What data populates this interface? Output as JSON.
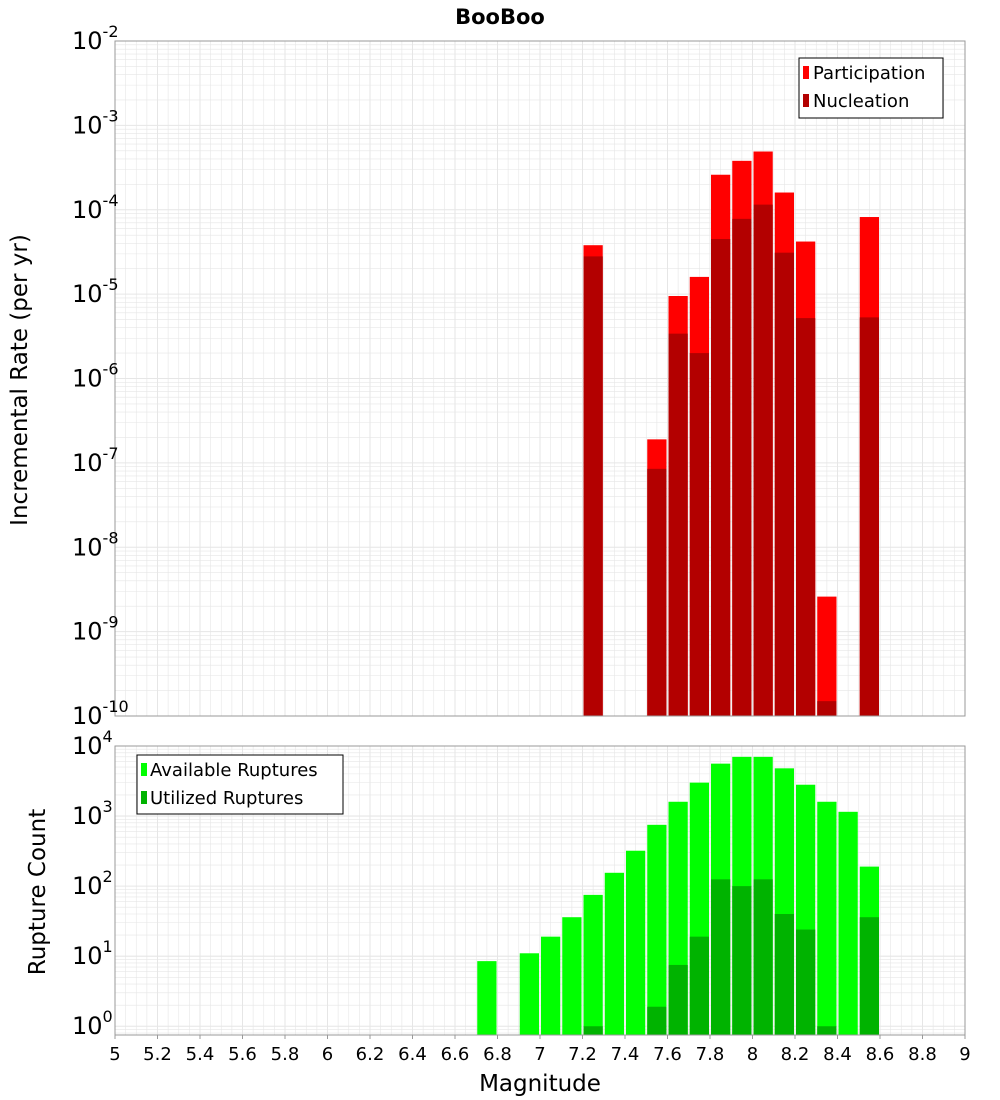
{
  "title": "BooBoo",
  "xlabel": "Magnitude",
  "colors": {
    "participation": "#ff0000",
    "nucleation": "#b30000",
    "available": "#00ff00",
    "utilized": "#00b300",
    "grid": "#e6e6e6",
    "frame": "#999999"
  },
  "chart_data": [
    {
      "type": "bar",
      "ylabel": "Incremental Rate (per yr)",
      "yscale": "log",
      "ylim": [
        1e-10,
        0.01
      ],
      "xlim": [
        5,
        9
      ],
      "grid": true,
      "legend_position": "top-right",
      "x": [
        7.25,
        7.55,
        7.65,
        7.75,
        7.85,
        7.95,
        8.05,
        8.15,
        8.25,
        8.35,
        8.55
      ],
      "series": [
        {
          "name": "Participation",
          "values": [
            3.8e-05,
            1.9e-07,
            9.5e-06,
            1.6e-05,
            0.00026,
            0.00038,
            0.00049,
            0.00016,
            4.2e-05,
            2.6e-09,
            8.2e-05
          ]
        },
        {
          "name": "Nucleation",
          "values": [
            2.8e-05,
            8.5e-08,
            3.4e-06,
            2e-06,
            4.5e-05,
            7.8e-05,
            0.000115,
            3.1e-05,
            5.2e-06,
            1.5e-10,
            5.3e-06
          ]
        }
      ]
    },
    {
      "type": "bar",
      "ylabel": "Rupture Count",
      "yscale": "log",
      "ylim": [
        0.75,
        10000
      ],
      "xlim": [
        5,
        9
      ],
      "grid": true,
      "legend_position": "top-left",
      "x": [
        6.75,
        6.95,
        7.05,
        7.15,
        7.25,
        7.35,
        7.45,
        7.55,
        7.65,
        7.75,
        7.85,
        7.95,
        8.05,
        8.15,
        8.25,
        8.35,
        8.45,
        8.55
      ],
      "series": [
        {
          "name": "Available Ruptures",
          "values": [
            8.5,
            11,
            19,
            36,
            75,
            155,
            320,
            750,
            1600,
            3000,
            5600,
            7000,
            7000,
            4800,
            2800,
            1600,
            1150,
            190
          ]
        },
        {
          "name": "Utilized Ruptures",
          "values": [
            null,
            null,
            null,
            null,
            1,
            null,
            null,
            1.9,
            7.5,
            19,
            125,
            100,
            125,
            40,
            24,
            1,
            null,
            36
          ]
        }
      ]
    }
  ],
  "xticks": [
    "5",
    "5.2",
    "5.4",
    "5.6",
    "5.8",
    "6",
    "6.2",
    "6.4",
    "6.6",
    "6.8",
    "7",
    "7.2",
    "7.4",
    "7.6",
    "7.8",
    "8",
    "8.2",
    "8.4",
    "8.6",
    "8.8",
    "9"
  ],
  "top_y_exponents": [
    "-2",
    "-3",
    "-4",
    "-5",
    "-6",
    "-7",
    "-8",
    "-9",
    "-10"
  ],
  "bottom_y_exponents": [
    "4",
    "3",
    "2",
    "1",
    "0"
  ]
}
